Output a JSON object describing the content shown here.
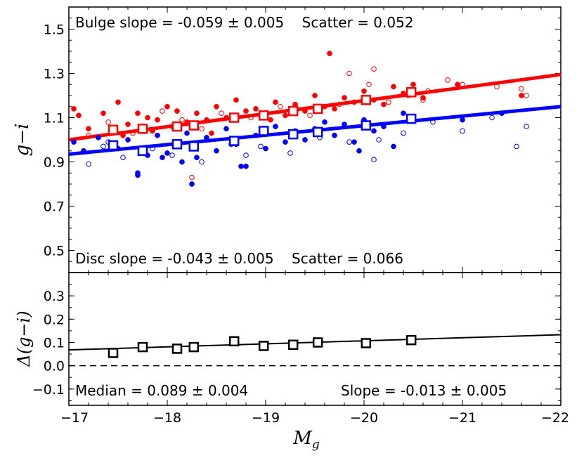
{
  "chart_data": [
    {
      "type": "scatter",
      "xlabel": "",
      "ylabel": "g−i",
      "xlim": [
        -17,
        -22
      ],
      "ylim": [
        0.4,
        1.6
      ],
      "yticks": [
        0.5,
        0.7,
        0.9,
        1.1,
        1.3,
        1.5
      ],
      "ytick_labels": [
        "0.5",
        "0.7",
        "0.9",
        "1.1",
        "1.3",
        "1.5"
      ],
      "annotations": {
        "bulge": "Bulge slope = -0.059 ± 0.005    Scatter = 0.052",
        "disc": "Disc slope = -0.043 ± 0.005    Scatter = 0.066"
      },
      "colors": {
        "bulge": "#ff0000",
        "disc": "#0000ff"
      },
      "series": [
        {
          "color_key": "bulge",
          "fit_line": {
            "x": [
              -17,
              -22
            ],
            "y": [
              1.0,
              1.295
            ]
          },
          "bin_medians": {
            "x": [
              -17.45,
              -17.75,
              -18.1,
              -18.27,
              -18.68,
              -18.98,
              -19.28,
              -19.53,
              -20.02,
              -20.48
            ],
            "y": [
              1.045,
              1.05,
              1.06,
              1.065,
              1.1,
              1.11,
              1.13,
              1.14,
              1.18,
              1.215
            ]
          },
          "points_filled": {
            "x": [
              -17.05,
              -17.1,
              -17.2,
              -17.35,
              -17.5,
              -17.6,
              -17.7,
              -17.8,
              -17.9,
              -18.0,
              -18.05,
              -18.1,
              -18.2,
              -18.3,
              -18.4,
              -18.5,
              -18.6,
              -18.7,
              -18.8,
              -18.9,
              -19.0,
              -19.1,
              -19.2,
              -19.3,
              -19.4,
              -19.5,
              -19.6,
              -19.7,
              -19.8,
              -19.9,
              -20.0,
              -20.1,
              -20.2,
              -20.3,
              -20.4,
              -20.5,
              -20.6,
              -19.65,
              -18.25,
              -17.55,
              -20.95,
              -21.6,
              -18.45,
              -19.05,
              -17.85
            ],
            "y": [
              1.14,
              1.11,
              1.05,
              1.12,
              1.17,
              1.07,
              1.12,
              1.1,
              1.09,
              1.15,
              1.06,
              1.13,
              1.08,
              1.12,
              1.09,
              1.15,
              1.1,
              1.18,
              1.13,
              1.14,
              1.12,
              1.17,
              1.11,
              1.16,
              1.13,
              1.2,
              1.15,
              1.14,
              1.19,
              1.17,
              1.22,
              1.18,
              1.16,
              1.24,
              1.21,
              1.25,
              1.19,
              1.39,
              1.06,
              1.02,
              1.25,
              1.2,
              1.03,
              1.09,
              1.04
            ]
          },
          "points_open": {
            "x": [
              -17.2,
              -17.4,
              -17.65,
              -17.95,
              -18.15,
              -18.35,
              -18.55,
              -18.85,
              -19.15,
              -19.45,
              -19.75,
              -20.05,
              -20.25,
              -20.45,
              -20.65,
              -20.85,
              -21.0,
              -21.35,
              -21.6,
              -21.65,
              -19.85,
              -20.1,
              -18.25,
              -20.6
            ],
            "y": [
              1.02,
              1.08,
              1.03,
              1.13,
              1.09,
              1.05,
              1.12,
              1.1,
              1.15,
              1.11,
              1.16,
              1.25,
              1.17,
              1.2,
              1.22,
              1.27,
              1.25,
              1.24,
              1.23,
              1.2,
              1.3,
              1.32,
              0.83,
              1.18
            ]
          }
        },
        {
          "color_key": "disc",
          "fit_line": {
            "x": [
              -17,
              -22
            ],
            "y": [
              0.935,
              1.15
            ]
          },
          "bin_medians": {
            "x": [
              -17.45,
              -17.75,
              -18.1,
              -18.27,
              -18.68,
              -18.98,
              -19.28,
              -19.53,
              -20.02,
              -20.48
            ],
            "y": [
              0.975,
              0.95,
              0.98,
              0.97,
              0.995,
              1.04,
              1.025,
              1.035,
              1.065,
              1.095
            ]
          },
          "points_filled": {
            "x": [
              -17.05,
              -17.15,
              -17.3,
              -17.5,
              -17.6,
              -17.7,
              -17.8,
              -17.9,
              -18.0,
              -18.1,
              -18.15,
              -18.2,
              -18.3,
              -18.4,
              -18.5,
              -18.6,
              -18.7,
              -18.8,
              -18.9,
              -19.0,
              -19.1,
              -19.2,
              -19.3,
              -19.4,
              -19.5,
              -19.6,
              -19.7,
              -19.8,
              -19.9,
              -20.0,
              -20.1,
              -20.2,
              -20.3,
              -20.4,
              -20.5,
              -21.0,
              -21.4,
              -17.7,
              -18.25,
              -17.95,
              -18.75,
              -19.95
            ],
            "y": [
              0.99,
              0.95,
              1.01,
              0.96,
              1.0,
              0.85,
              0.93,
              1.02,
              0.94,
              0.97,
              0.9,
              1.03,
              0.92,
              1.01,
              0.95,
              1.05,
              0.98,
              0.88,
              1.02,
              0.96,
              1.06,
              0.99,
              1.04,
              1.0,
              1.05,
              1.08,
              1.02,
              1.07,
              0.99,
              1.09,
              1.04,
              1.06,
              0.97,
              1.12,
              1.1,
              1.09,
              1.12,
              0.84,
              0.8,
              0.92,
              0.88,
              0.95
            ]
          },
          "points_open": {
            "x": [
              -17.2,
              -17.35,
              -17.55,
              -17.85,
              -18.05,
              -18.35,
              -18.65,
              -18.95,
              -19.25,
              -19.55,
              -19.85,
              -20.1,
              -20.4,
              -20.7,
              -21.0,
              -21.3,
              -21.55,
              -21.65,
              -20.15,
              -18.8,
              -17.4
            ],
            "y": [
              0.89,
              0.97,
              0.92,
              0.96,
              0.93,
              0.9,
              0.98,
              0.97,
              0.94,
              1.01,
              0.99,
              0.91,
              1.03,
              1.08,
              1.04,
              1.1,
              0.97,
              1.06,
              1.0,
              0.93,
              0.99
            ]
          }
        }
      ]
    },
    {
      "type": "scatter",
      "xlabel": "M_g",
      "ylabel": "Δ(g−i)",
      "xlim": [
        -17,
        -22
      ],
      "ylim": [
        -0.17,
        0.4
      ],
      "xticks": [
        -17,
        -18,
        -19,
        -20,
        -21,
        -22
      ],
      "xtick_labels": [
        "−17",
        "−18",
        "−19",
        "−20",
        "−21",
        "−22"
      ],
      "yticks": [
        -0.1,
        0.0,
        0.1,
        0.2,
        0.3
      ],
      "ytick_labels": [
        "−0.1",
        "0.0",
        "0.1",
        "0.2",
        "0.3"
      ],
      "annotations": {
        "median": "Median = 0.089 ± 0.004",
        "slope": "Slope = -0.013 ± 0.005"
      },
      "reference_line": {
        "y": 0.0,
        "style": "dashed"
      },
      "fit_line": {
        "x": [
          -17,
          -22
        ],
        "y": [
          0.068,
          0.133
        ]
      },
      "points": {
        "x": [
          -17.45,
          -17.75,
          -18.1,
          -18.27,
          -18.68,
          -18.98,
          -19.28,
          -19.53,
          -20.02,
          -20.48
        ],
        "y": [
          0.055,
          0.08,
          0.073,
          0.08,
          0.105,
          0.085,
          0.09,
          0.1,
          0.097,
          0.11
        ]
      }
    }
  ]
}
